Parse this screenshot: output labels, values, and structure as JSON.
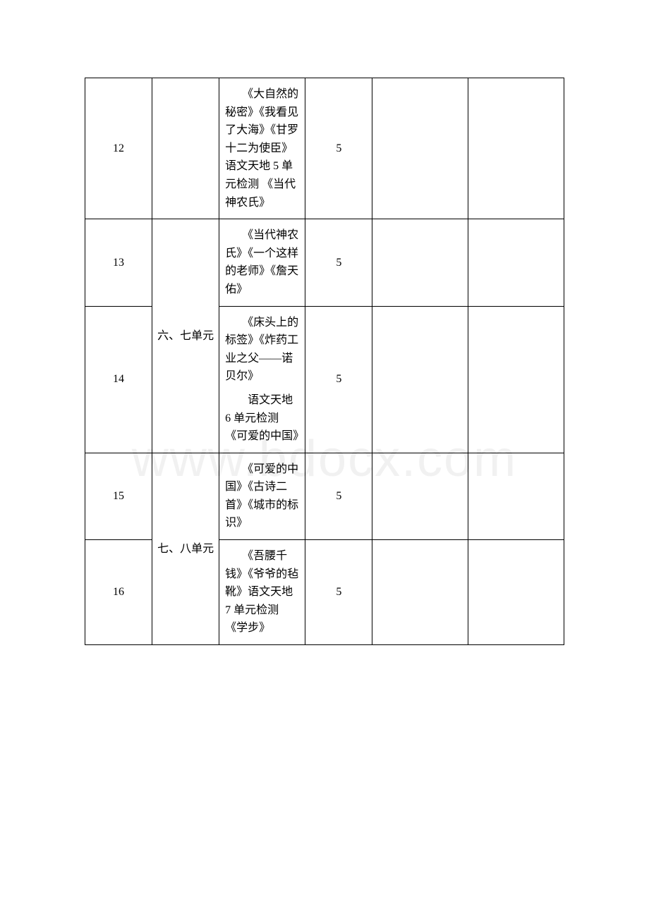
{
  "watermark": "www.bdocx.com",
  "rows": [
    {
      "week": "12",
      "unit": "",
      "content": "　　《大自然的秘密》《我看见了大海》《甘罗十二为使臣》 语文天地 5 单元检测 《当代神农氏》",
      "hours": "5"
    },
    {
      "week": "13",
      "unit": "六、七单元",
      "unit_rowspan": 2,
      "content": "　　《当代神农氏》《一个这样的老师》《詹天佑》",
      "hours": "5"
    },
    {
      "week": "14",
      "content_multi": [
        "　　《床头上的标签》《炸药工业之父——诺贝尔》",
        "　　语文天地 6 单元检测 《可爱的中国》"
      ],
      "hours": "5"
    },
    {
      "week": "15",
      "unit": "七、八单元",
      "unit_rowspan": 2,
      "content": "　　《可爱的中国》《古诗二首》《城市的标识》",
      "hours": "5"
    },
    {
      "week": "16",
      "content": "　　《吾腰千钱》《爷爷的毡靴》语文天地 7 单元检测《学步》",
      "hours": "5"
    }
  ]
}
